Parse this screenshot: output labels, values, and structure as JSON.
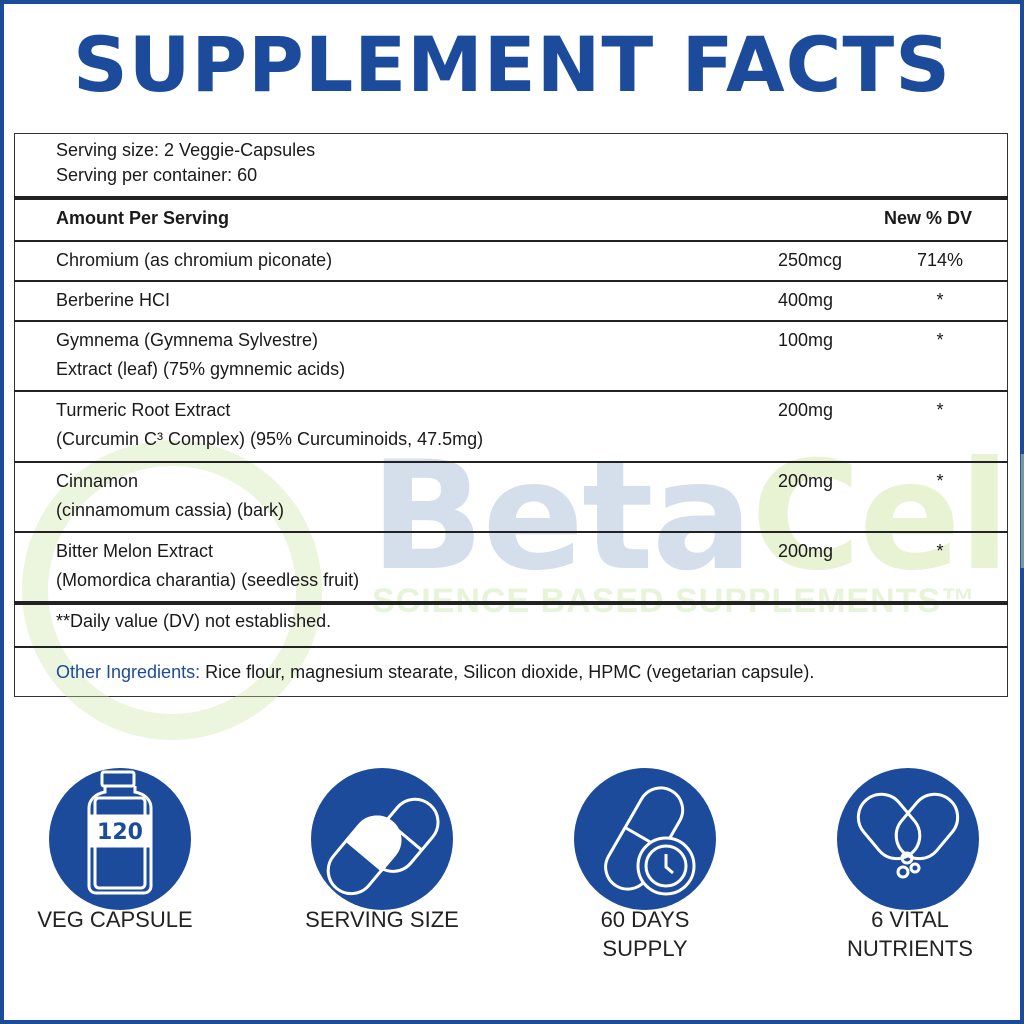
{
  "title": "SUPPLEMENT FACTS",
  "serving": {
    "size": "Serving size: 2 Veggie-Capsules",
    "per_container": "Serving per container: 60"
  },
  "header": {
    "amount": "Amount Per Serving",
    "dv": "New % DV"
  },
  "rows": [
    {
      "name": [
        "Chromium (as chromium piconate)"
      ],
      "amount": "250mcg",
      "dv": "714%"
    },
    {
      "name": [
        "Berberine HCI"
      ],
      "amount": "400mg",
      "dv": "*"
    },
    {
      "name": [
        "Gymnema (Gymnema Sylvestre)",
        "Extract (leaf) (75% gymnemic acids)"
      ],
      "amount": "100mg",
      "dv": "*"
    },
    {
      "name": [
        "Turmeric Root Extract",
        "(Curcumin C³ Complex) (95% Curcuminoids, 47.5mg)"
      ],
      "amount": "200mg",
      "dv": "*"
    },
    {
      "name": [
        "Cinnamon",
        "(cinnamomum cassia) (bark)"
      ],
      "amount": "200mg",
      "dv": "*"
    },
    {
      "name": [
        "Bitter Melon Extract",
        "(Momordica charantia) (seedless fruit)"
      ],
      "amount": "200mg",
      "dv": "*"
    }
  ],
  "footnote": "**Daily value (DV) not established.",
  "other": {
    "label": "Other Ingredients:",
    "text": " Rice flour, magnesium stearate, Silicon dioxide, HPMC (vegetarian capsule)."
  },
  "watermark": {
    "brand_a": "Beta",
    "brand_b": "Cell",
    "tm": "™",
    "tagline": "SCIENCE BASED SUPPLEMENTS™"
  },
  "features": [
    {
      "icon": "bottle-icon",
      "badge": "120",
      "label": [
        "VEG CAPSULE"
      ]
    },
    {
      "icon": "capsules-icon",
      "label": [
        "SERVING SIZE"
      ]
    },
    {
      "icon": "capsule-clock-icon",
      "label": [
        "60 DAYS",
        "SUPPLY"
      ]
    },
    {
      "icon": "open-capsule-icon",
      "label": [
        "6 VITAL",
        "NUTRIENTS"
      ]
    }
  ],
  "colors": {
    "brand": "#1d4b9b",
    "label_blue": "#1d4b9b"
  }
}
